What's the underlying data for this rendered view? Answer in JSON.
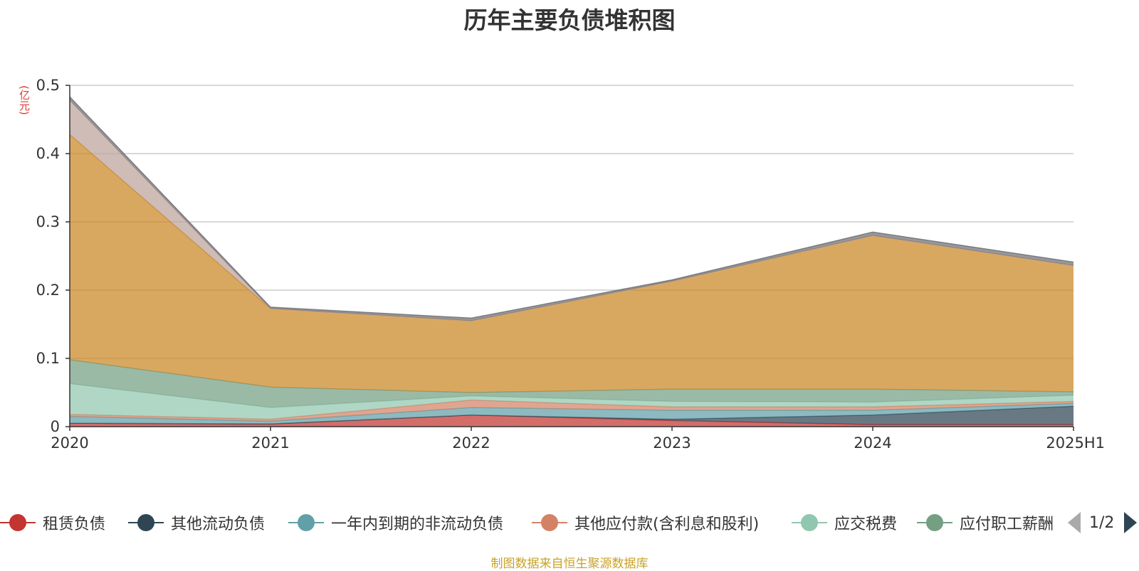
{
  "title": "历年主要负债堆积图",
  "y_unit": "(亿元)",
  "source": "制图数据来自恒生聚源数据库",
  "legend_pager": "1/2",
  "chart_data": {
    "type": "area",
    "stacked": true,
    "categories": [
      "2020",
      "2021",
      "2022",
      "2023",
      "2024",
      "2025H1"
    ],
    "ylim": [
      0,
      0.5
    ],
    "yticks": [
      "0",
      "0.1",
      "0.2",
      "0.3",
      "0.4",
      "0.5"
    ],
    "grid": true,
    "legend_position": "bottom",
    "series": [
      {
        "name": "租赁负债",
        "color": "#c23531",
        "values": [
          0.005,
          0.004,
          0.017,
          0.009,
          0.003,
          0.003
        ]
      },
      {
        "name": "其他流动负债",
        "color": "#2f4554",
        "values": [
          0.0,
          0.0,
          0.0,
          0.002,
          0.014,
          0.027
        ]
      },
      {
        "name": "一年内到期的非流动负债",
        "color": "#61a0a8",
        "values": [
          0.01,
          0.004,
          0.011,
          0.013,
          0.007,
          0.004
        ]
      },
      {
        "name": "其他应付款(含利息和股利)",
        "color": "#d48265",
        "values": [
          0.003,
          0.003,
          0.011,
          0.005,
          0.005,
          0.003
        ]
      },
      {
        "name": "应交税费",
        "color": "#91c7ae",
        "values": [
          0.045,
          0.017,
          0.006,
          0.008,
          0.007,
          0.009
        ]
      },
      {
        "name": "应付职工薪酬",
        "color": "#749f83",
        "values": [
          0.035,
          0.03,
          0.005,
          0.018,
          0.019,
          0.005
        ]
      },
      {
        "name": "",
        "color": "#ca8622",
        "values": [
          0.33,
          0.115,
          0.105,
          0.158,
          0.225,
          0.185
        ]
      },
      {
        "name": "",
        "color": "#bda29a",
        "values": [
          0.05,
          0.0,
          0.0,
          0.0,
          0.0,
          0.0
        ]
      },
      {
        "name": "",
        "color": "#6e7074",
        "values": [
          0.005,
          0.002,
          0.004,
          0.002,
          0.005,
          0.005
        ]
      }
    ]
  }
}
